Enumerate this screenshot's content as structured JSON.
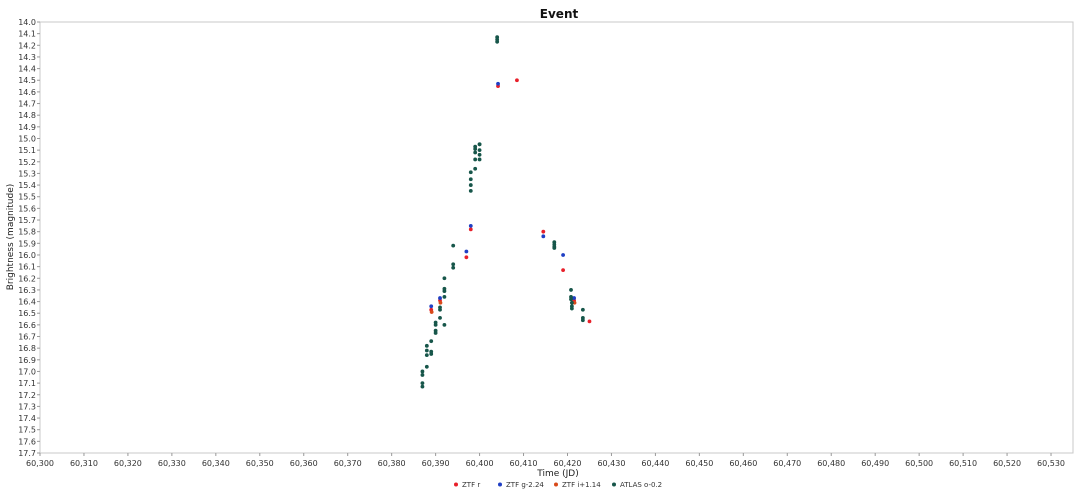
{
  "chart_data": {
    "type": "scatter",
    "title": "Event",
    "xlabel": "Time (JD)",
    "ylabel": "Brightness (magnitude)",
    "xlim": [
      60300,
      60535
    ],
    "ylim": [
      14.0,
      17.7
    ],
    "y_inverted": true,
    "grid": false,
    "legend_position": "bottom-center",
    "x_ticks": [
      60300,
      60310,
      60320,
      60330,
      60340,
      60350,
      60360,
      60370,
      60380,
      60390,
      60400,
      60410,
      60420,
      60430,
      60440,
      60450,
      60460,
      60470,
      60480,
      60490,
      60500,
      60510,
      60520,
      60530
    ],
    "x_tick_labels": [
      "60,300",
      "60,310",
      "60,320",
      "60,330",
      "60,340",
      "60,350",
      "60,360",
      "60,370",
      "60,380",
      "60,390",
      "60,400",
      "60,410",
      "60,420",
      "60,430",
      "60,440",
      "60,450",
      "60,460",
      "60,470",
      "60,480",
      "60,490",
      "60,500",
      "60,510",
      "60,520",
      "60,530"
    ],
    "y_ticks": [
      14.0,
      14.1,
      14.2,
      14.3,
      14.4,
      14.5,
      14.6,
      14.7,
      14.8,
      14.9,
      15.0,
      15.1,
      15.2,
      15.3,
      15.4,
      15.5,
      15.6,
      15.7,
      15.8,
      15.9,
      16.0,
      16.1,
      16.2,
      16.3,
      16.4,
      16.5,
      16.6,
      16.7,
      16.8,
      16.9,
      17.0,
      17.1,
      17.2,
      17.3,
      17.4,
      17.5,
      17.6,
      17.7
    ],
    "y_tick_labels": [
      "14.0",
      "14.1",
      "14.2",
      "14.3",
      "14.4",
      "14.5",
      "14.6",
      "14.7",
      "14.8",
      "14.9",
      "15.0",
      "15.1",
      "15.2",
      "15.3",
      "15.4",
      "15.5",
      "15.6",
      "15.7",
      "15.8",
      "15.9",
      "16.0",
      "16.1",
      "16.2",
      "16.3",
      "16.4",
      "16.5",
      "16.6",
      "16.7",
      "16.8",
      "16.9",
      "17.0",
      "17.1",
      "17.2",
      "17.3",
      "17.4",
      "17.5",
      "17.6",
      "17.7"
    ],
    "series": [
      {
        "name": "ZTF r",
        "color": "#e8202a",
        "points": [
          [
            60389.0,
            16.47
          ],
          [
            60391.0,
            16.39
          ],
          [
            60397.0,
            16.02
          ],
          [
            60398.0,
            15.78
          ],
          [
            60404.2,
            14.55
          ],
          [
            60408.5,
            14.5
          ],
          [
            60414.5,
            15.8
          ],
          [
            60419.0,
            16.13
          ],
          [
            60421.5,
            16.39
          ],
          [
            60425.0,
            16.57
          ]
        ]
      },
      {
        "name": "ZTF g-2.24",
        "color": "#1f3fc4",
        "points": [
          [
            60389.0,
            16.44
          ],
          [
            60391.0,
            16.37
          ],
          [
            60397.0,
            15.97
          ],
          [
            60398.0,
            15.75
          ],
          [
            60404.2,
            14.53
          ],
          [
            60414.5,
            15.84
          ],
          [
            60419.0,
            16.0
          ],
          [
            60421.5,
            16.37
          ]
        ]
      },
      {
        "name": "ZTF i+1.14",
        "color": "#d84a1a",
        "points": [
          [
            60389.1,
            16.49
          ],
          [
            60391.1,
            16.41
          ],
          [
            60421.6,
            16.41
          ]
        ]
      },
      {
        "name": "ATLAS o-0.2",
        "color": "#17564a",
        "points": [
          [
            60387.0,
            17.0
          ],
          [
            60387.0,
            17.03
          ],
          [
            60387.0,
            17.1
          ],
          [
            60387.0,
            17.13
          ],
          [
            60388.0,
            16.78
          ],
          [
            60388.0,
            16.82
          ],
          [
            60388.0,
            16.86
          ],
          [
            60388.0,
            16.96
          ],
          [
            60389.0,
            16.74
          ],
          [
            60389.0,
            16.83
          ],
          [
            60389.0,
            16.85
          ],
          [
            60390.0,
            16.58
          ],
          [
            60390.0,
            16.6
          ],
          [
            60390.0,
            16.65
          ],
          [
            60390.0,
            16.67
          ],
          [
            60391.0,
            16.45
          ],
          [
            60391.0,
            16.47
          ],
          [
            60391.0,
            16.54
          ],
          [
            60392.0,
            16.6
          ],
          [
            60392.0,
            16.2
          ],
          [
            60392.0,
            16.29
          ],
          [
            60392.0,
            16.31
          ],
          [
            60392.0,
            16.36
          ],
          [
            60394.0,
            16.08
          ],
          [
            60394.0,
            16.11
          ],
          [
            60394.0,
            15.92
          ],
          [
            60398.0,
            15.29
          ],
          [
            60398.0,
            15.35
          ],
          [
            60398.0,
            15.4
          ],
          [
            60398.0,
            15.45
          ],
          [
            60399.0,
            15.07
          ],
          [
            60399.0,
            15.09
          ],
          [
            60399.0,
            15.12
          ],
          [
            60399.0,
            15.18
          ],
          [
            60399.0,
            15.26
          ],
          [
            60400.0,
            15.05
          ],
          [
            60400.0,
            15.05
          ],
          [
            60400.0,
            15.1
          ],
          [
            60400.0,
            15.14
          ],
          [
            60400.0,
            15.18
          ],
          [
            60404.0,
            14.13
          ],
          [
            60404.0,
            14.15
          ],
          [
            60404.0,
            14.17
          ],
          [
            60417.0,
            15.89
          ],
          [
            60417.0,
            15.91
          ],
          [
            60417.0,
            15.93
          ],
          [
            60417.0,
            15.94
          ],
          [
            60420.8,
            16.3
          ],
          [
            60420.8,
            16.36
          ],
          [
            60420.8,
            16.38
          ],
          [
            60421.0,
            16.41
          ],
          [
            60421.0,
            16.44
          ],
          [
            60421.0,
            16.46
          ],
          [
            60423.5,
            16.47
          ],
          [
            60423.5,
            16.54
          ],
          [
            60423.5,
            16.56
          ]
        ]
      }
    ]
  }
}
